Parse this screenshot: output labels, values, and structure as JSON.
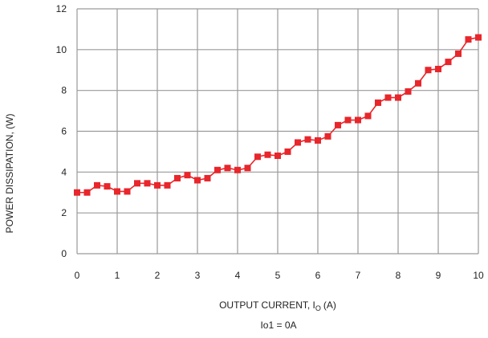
{
  "chart_data": {
    "type": "line",
    "title": "",
    "xlabel": {
      "main": "OUTPUT CURRENT, I",
      "subscript": "O",
      "unit": "(A)"
    },
    "ylabel": "POWER DISSIPATION, (W)",
    "caption": "Io1 = 0A",
    "xlim": [
      0,
      10
    ],
    "ylim": [
      0,
      12
    ],
    "xticks": [
      "0",
      "1",
      "2",
      "3",
      "4",
      "5",
      "6",
      "7",
      "8",
      "9",
      "10"
    ],
    "yticks": [
      "0",
      "2",
      "4",
      "6",
      "8",
      "10",
      "12"
    ],
    "grid": true,
    "colors": {
      "series": "#e8262b",
      "grid": "#9a9a9a"
    },
    "series": [
      {
        "x": [
          0,
          0.25,
          0.5,
          0.75,
          1,
          1.25,
          1.5,
          1.75,
          2,
          2.25,
          2.5,
          2.75,
          3,
          3.25,
          3.5,
          3.75,
          4,
          4.25,
          4.5,
          4.75,
          5,
          5.25,
          5.5,
          5.75,
          6,
          6.25,
          6.5,
          6.75,
          7,
          7.25,
          7.5,
          7.75,
          8,
          8.25,
          8.5,
          8.75,
          9,
          9.25,
          9.5,
          9.75,
          10
        ],
        "y": [
          3.0,
          3.0,
          3.35,
          3.3,
          3.05,
          3.05,
          3.45,
          3.45,
          3.35,
          3.35,
          3.7,
          3.85,
          3.6,
          3.7,
          4.1,
          4.2,
          4.1,
          4.2,
          4.75,
          4.85,
          4.8,
          5.0,
          5.45,
          5.6,
          5.55,
          5.75,
          6.3,
          6.55,
          6.55,
          6.75,
          7.4,
          7.65,
          7.65,
          7.95,
          8.35,
          9.0,
          9.05,
          9.4,
          9.8,
          10.5,
          10.6
        ]
      }
    ]
  }
}
